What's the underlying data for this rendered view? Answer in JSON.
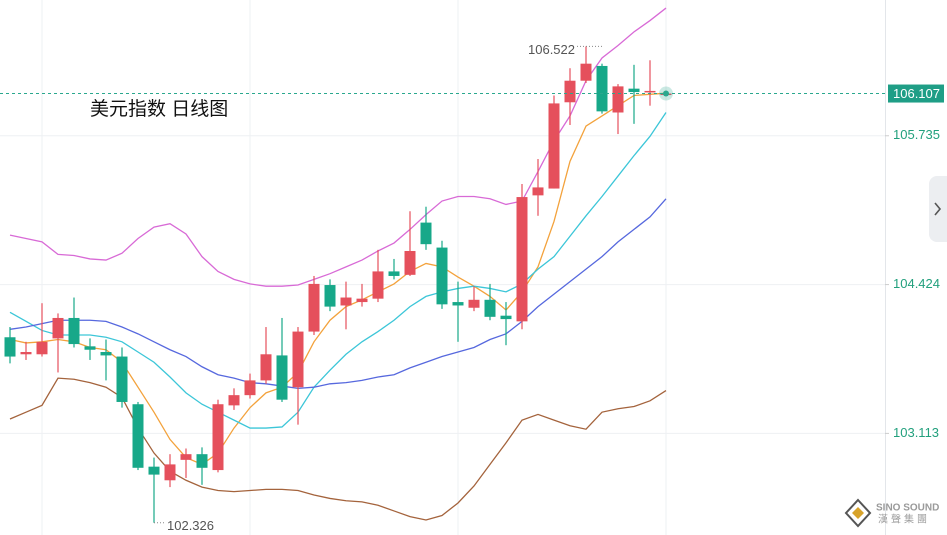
{
  "chart_data": {
    "type": "candlestick",
    "title": "美元指数 日线图",
    "ylim": [
      102.218,
      106.931
    ],
    "yticks": [
      103.113,
      104.424,
      105.735
    ],
    "grid": true,
    "current_price": 106.107,
    "max_label": 106.522,
    "min_label": 102.326,
    "up_color": "#e5505c",
    "down_color": "#17a889",
    "open": [
      103.96,
      103.81,
      103.81,
      103.95,
      104.13,
      103.88,
      103.83,
      103.79,
      103.37,
      102.82,
      102.7,
      102.88,
      102.93,
      102.79,
      103.36,
      103.45,
      103.58,
      103.8,
      103.52,
      104.01,
      104.42,
      104.24,
      104.27,
      104.3,
      104.54,
      104.51,
      104.97,
      104.75,
      104.27,
      104.22,
      104.29,
      104.15,
      104.1,
      105.21,
      105.27,
      106.03,
      106.22,
      106.35,
      105.94,
      106.15,
      106.12,
      106.1
    ],
    "high": [
      104.05,
      103.92,
      104.26,
      104.17,
      104.31,
      103.95,
      103.94,
      103.87,
      103.39,
      102.9,
      102.93,
      102.98,
      102.99,
      103.41,
      103.51,
      103.64,
      104.05,
      104.13,
      104.05,
      104.5,
      104.47,
      104.45,
      104.43,
      104.73,
      104.65,
      105.07,
      105.11,
      104.81,
      104.45,
      104.41,
      104.43,
      104.27,
      105.31,
      105.53,
      106.09,
      106.33,
      106.522,
      106.37,
      106.19,
      106.36,
      106.4,
      106.12
    ],
    "low": [
      103.73,
      103.76,
      103.79,
      103.65,
      103.87,
      103.76,
      103.58,
      103.34,
      102.79,
      102.326,
      102.64,
      102.72,
      102.66,
      102.77,
      103.32,
      103.42,
      103.55,
      103.39,
      103.19,
      103.98,
      104.19,
      104.03,
      104.23,
      104.27,
      104.47,
      104.5,
      104.73,
      104.21,
      103.92,
      104.19,
      104.11,
      103.89,
      104.03,
      105.03,
      105.27,
      105.83,
      106.2,
      105.93,
      105.75,
      105.84,
      106.0,
      106.09
    ],
    "close": [
      103.79,
      103.83,
      103.92,
      104.13,
      103.9,
      103.85,
      103.8,
      103.39,
      102.81,
      102.75,
      102.84,
      102.93,
      102.81,
      103.37,
      103.45,
      103.58,
      103.81,
      103.41,
      104.01,
      104.43,
      104.23,
      104.31,
      104.3,
      104.54,
      104.5,
      104.72,
      104.78,
      104.25,
      104.24,
      104.29,
      104.14,
      104.12,
      105.195,
      105.28,
      106.02,
      106.22,
      106.37,
      105.95,
      106.17,
      106.12,
      106.13,
      106.107
    ],
    "series": [
      {
        "color": "#f3a23c",
        "values": [
          103.94,
          103.91,
          103.92,
          103.94,
          103.92,
          103.87,
          103.85,
          103.74,
          103.52,
          103.3,
          103.06,
          102.9,
          102.84,
          102.94,
          103.16,
          103.34,
          103.47,
          103.52,
          103.65,
          103.92,
          104.11,
          104.23,
          104.29,
          104.36,
          104.43,
          104.54,
          104.61,
          104.58,
          104.49,
          104.41,
          104.32,
          104.2,
          104.36,
          104.58,
          104.98,
          105.51,
          105.82,
          105.91,
          106.0,
          106.09,
          106.1,
          106.11
        ]
      },
      {
        "color": "#3cc6d8",
        "values": [
          104.18,
          104.1,
          104.02,
          103.98,
          103.98,
          103.98,
          103.96,
          103.92,
          103.83,
          103.74,
          103.61,
          103.47,
          103.37,
          103.3,
          103.23,
          103.16,
          103.16,
          103.17,
          103.3,
          103.52,
          103.67,
          103.81,
          103.92,
          104.01,
          104.11,
          104.23,
          104.32,
          104.36,
          104.39,
          104.41,
          104.39,
          104.36,
          104.43,
          104.56,
          104.67,
          104.85,
          105.03,
          105.2,
          105.38,
          105.56,
          105.73,
          105.94
        ]
      },
      {
        "color": "#5668de",
        "values": [
          104.03,
          104.05,
          104.08,
          104.11,
          104.11,
          104.11,
          104.1,
          104.05,
          103.99,
          103.92,
          103.85,
          103.79,
          103.7,
          103.63,
          103.6,
          103.56,
          103.55,
          103.53,
          103.51,
          103.52,
          103.55,
          103.56,
          103.58,
          103.61,
          103.63,
          103.69,
          103.74,
          103.79,
          103.83,
          103.87,
          103.94,
          103.99,
          104.1,
          104.23,
          104.34,
          104.45,
          104.56,
          104.67,
          104.8,
          104.91,
          105.02,
          105.18
        ]
      },
      {
        "color": "#d86ad6",
        "values": [
          104.86,
          104.83,
          104.8,
          104.69,
          104.68,
          104.65,
          104.64,
          104.7,
          104.83,
          104.93,
          104.96,
          104.87,
          104.67,
          104.54,
          104.47,
          104.43,
          104.41,
          104.41,
          104.42,
          104.47,
          104.52,
          104.58,
          104.64,
          104.72,
          104.79,
          104.91,
          105.04,
          105.16,
          105.2,
          105.2,
          105.18,
          105.13,
          105.16,
          105.42,
          105.69,
          105.91,
          106.22,
          106.42,
          106.53,
          106.65,
          106.75,
          106.86
        ]
      },
      {
        "color": "#a4633c",
        "values": [
          103.24,
          103.3,
          103.36,
          103.6,
          103.59,
          103.56,
          103.52,
          103.43,
          103.16,
          102.94,
          102.78,
          102.7,
          102.64,
          102.61,
          102.6,
          102.61,
          102.62,
          102.62,
          102.61,
          102.57,
          102.54,
          102.52,
          102.51,
          102.48,
          102.43,
          102.38,
          102.35,
          102.39,
          102.5,
          102.65,
          102.84,
          103.03,
          103.23,
          103.28,
          103.23,
          103.18,
          103.15,
          103.3,
          103.33,
          103.35,
          103.4,
          103.49
        ]
      }
    ]
  },
  "logo": {
    "en": "SINO SOUND",
    "zh": "漢聲集團"
  }
}
